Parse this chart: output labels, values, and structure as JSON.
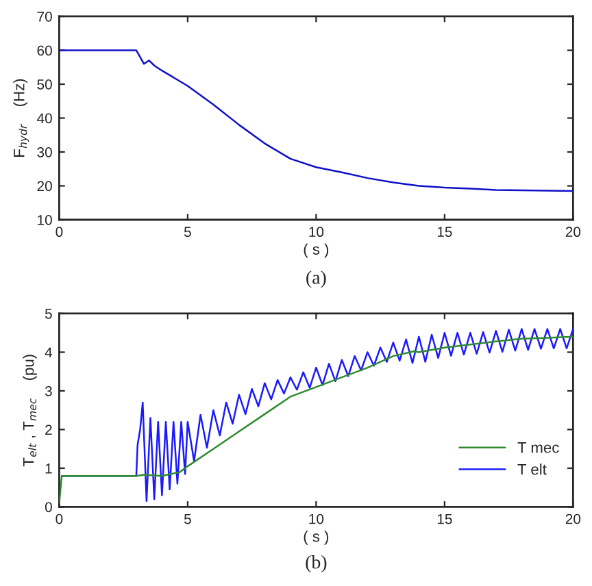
{
  "chart_data": [
    {
      "type": "line",
      "xlabel": "( s )",
      "ylabel": "F$_{hydr}$    (Hz)",
      "annotations": [
        "(a)"
      ],
      "xlim": [
        0,
        20
      ],
      "xticks": [
        0,
        5,
        10,
        15,
        20
      ],
      "ylim": [
        10,
        70
      ],
      "yticks": [
        10,
        20,
        30,
        40,
        50,
        60,
        70
      ],
      "grid": false,
      "legend": false,
      "series": [
        {
          "color": "#1010c8",
          "x": [
            0,
            3.0,
            3.3,
            3.5,
            3.7,
            4,
            5,
            6,
            7,
            8,
            9,
            10,
            11,
            12,
            13,
            14,
            15,
            16,
            17,
            18,
            20
          ],
          "values": [
            60,
            60,
            56,
            57,
            55.5,
            54,
            49.5,
            44,
            38,
            32.5,
            28,
            25.5,
            24,
            22.3,
            21,
            20,
            19.5,
            19.2,
            18.8,
            18.7,
            18.5
          ]
        }
      ]
    },
    {
      "type": "line",
      "xlabel": "( s )",
      "ylabel": "T$_{elt}$ , T$_{mec}$    (pu)",
      "annotations": [
        "(b)"
      ],
      "xlim": [
        0,
        20
      ],
      "xticks": [
        0,
        5,
        10,
        15,
        20
      ],
      "ylim": [
        0,
        5
      ],
      "yticks": [
        0,
        1,
        2,
        3,
        4,
        5
      ],
      "grid": false,
      "legend": "lower right",
      "series": [
        {
          "name": "T mec",
          "color": "#2e8b2e",
          "x": [
            0,
            0.1,
            3.0,
            3.3,
            4.0,
            4.7,
            5,
            6,
            7,
            8,
            9,
            10,
            11,
            12,
            13,
            13.8,
            14,
            15,
            16,
            17,
            18,
            19,
            20
          ],
          "values": [
            0.1,
            0.8,
            0.8,
            0.83,
            0.8,
            0.9,
            1.05,
            1.5,
            1.95,
            2.4,
            2.85,
            3.1,
            3.35,
            3.6,
            3.9,
            4.02,
            4.0,
            4.12,
            4.2,
            4.28,
            4.35,
            4.37,
            4.4
          ]
        },
        {
          "name": "T elt",
          "color": "#1a1aff",
          "x": [
            0.1,
            3.0,
            3.05,
            3.15,
            3.25,
            3.4,
            3.55,
            3.7,
            3.85,
            4.0,
            4.15,
            4.3,
            4.45,
            4.6,
            4.75,
            4.9,
            5.0,
            5.25,
            5.5,
            5.75,
            6.0,
            6.25,
            6.5,
            6.75,
            7.0,
            7.25,
            7.5,
            7.75,
            8.0,
            8.25,
            8.5,
            8.75,
            9.0,
            9.25,
            9.5,
            9.75,
            10.0,
            10.25,
            10.5,
            10.75,
            11.0,
            11.25,
            11.5,
            11.75,
            12.0,
            12.25,
            12.5,
            12.75,
            13.0,
            13.25,
            13.5,
            13.75,
            14.0,
            14.25,
            14.5,
            14.75,
            15.0,
            15.25,
            15.5,
            15.75,
            16.0,
            16.25,
            16.5,
            16.75,
            17.0,
            17.25,
            17.5,
            17.75,
            18.0,
            18.25,
            18.5,
            18.75,
            19.0,
            19.25,
            19.5,
            19.75,
            20.0
          ],
          "values": [
            0.8,
            0.8,
            1.6,
            2.0,
            2.7,
            0.15,
            2.3,
            0.2,
            2.2,
            0.3,
            2.2,
            0.45,
            2.2,
            0.6,
            2.2,
            0.85,
            2.2,
            1.18,
            2.38,
            1.53,
            2.5,
            1.85,
            2.7,
            2.15,
            2.9,
            2.4,
            3.05,
            2.6,
            3.2,
            2.78,
            3.28,
            2.93,
            3.35,
            3.03,
            3.48,
            3.08,
            3.6,
            3.15,
            3.7,
            3.25,
            3.8,
            3.38,
            3.9,
            3.53,
            4.0,
            3.65,
            4.12,
            3.75,
            4.25,
            3.78,
            4.33,
            3.72,
            4.4,
            3.75,
            4.45,
            3.85,
            4.5,
            3.91,
            4.5,
            3.94,
            4.5,
            3.96,
            4.52,
            3.99,
            4.55,
            4.01,
            4.58,
            4.04,
            4.6,
            4.06,
            4.6,
            4.09,
            4.6,
            4.1,
            4.6,
            4.1,
            4.6
          ]
        }
      ]
    }
  ]
}
